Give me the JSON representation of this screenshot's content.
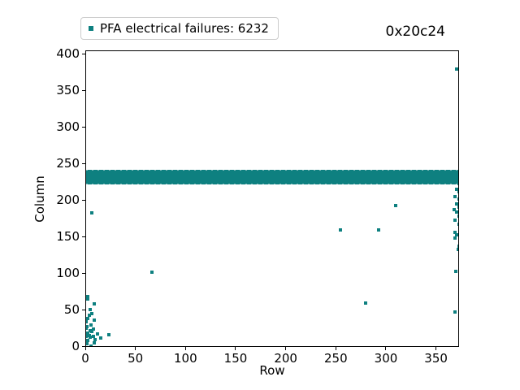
{
  "chart_data": {
    "type": "scatter",
    "title": "0x20c24",
    "legend_label": "PFA electrical failures: 6232",
    "series_name": "PFA electrical failures",
    "failure_count": 6232,
    "xlabel": "Row",
    "ylabel": "Column",
    "xlim": [
      0,
      373
    ],
    "ylim": [
      0,
      404
    ],
    "xticks": [
      0,
      50,
      100,
      150,
      200,
      250,
      300,
      350
    ],
    "yticks": [
      0,
      50,
      100,
      150,
      200,
      250,
      300,
      350,
      400
    ],
    "marker": "square",
    "color": "#0e8080",
    "grid": false,
    "legend_position": "upper-left",
    "dense_band": {
      "note": "solid horizontal band of failures spanning all rows",
      "x_range": [
        0,
        373
      ],
      "y_range": [
        222,
        242
      ]
    },
    "points": [
      [
        2,
        69
      ],
      [
        2,
        66
      ],
      [
        8,
        59
      ],
      [
        4,
        51
      ],
      [
        6,
        46
      ],
      [
        3,
        43
      ],
      [
        2,
        39
      ],
      [
        8,
        37
      ],
      [
        0,
        34
      ],
      [
        5,
        30
      ],
      [
        1,
        28
      ],
      [
        0,
        26
      ],
      [
        7,
        24
      ],
      [
        4,
        22
      ],
      [
        6,
        21
      ],
      [
        2,
        19
      ],
      [
        11,
        18
      ],
      [
        23,
        17
      ],
      [
        3,
        16
      ],
      [
        0,
        15
      ],
      [
        7,
        14
      ],
      [
        4,
        13
      ],
      [
        15,
        12
      ],
      [
        9,
        10
      ],
      [
        2,
        9
      ],
      [
        8,
        6
      ],
      [
        1,
        4
      ],
      [
        5,
        1
      ],
      [
        6,
        183
      ],
      [
        66,
        102
      ],
      [
        254,
        160
      ],
      [
        292,
        160
      ],
      [
        279,
        60
      ],
      [
        309,
        193
      ],
      [
        370,
        380
      ],
      [
        372,
        223
      ],
      [
        370,
        216
      ],
      [
        372,
        212
      ],
      [
        368,
        206
      ],
      [
        372,
        202
      ],
      [
        370,
        196
      ],
      [
        372,
        191
      ],
      [
        367,
        188
      ],
      [
        370,
        185
      ],
      [
        372,
        179
      ],
      [
        368,
        173
      ],
      [
        372,
        168
      ],
      [
        368,
        157
      ],
      [
        370,
        153
      ],
      [
        368,
        149
      ],
      [
        372,
        138
      ],
      [
        371,
        133
      ],
      [
        369,
        103
      ],
      [
        368,
        48
      ]
    ]
  }
}
